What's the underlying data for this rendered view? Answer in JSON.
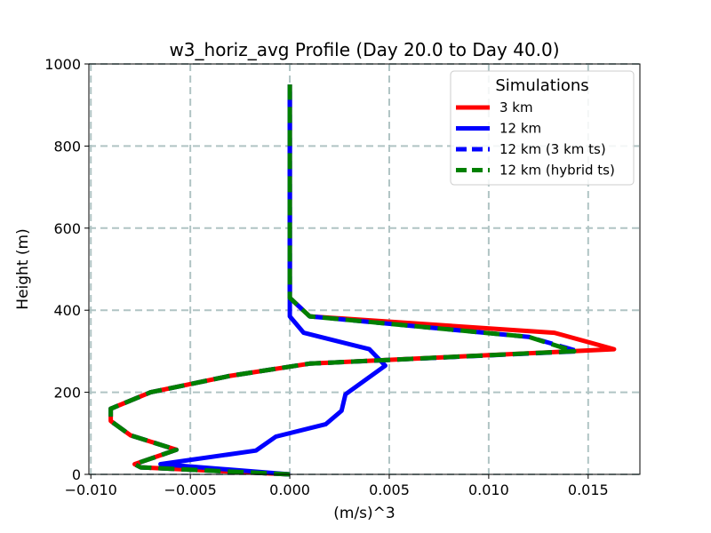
{
  "chart_data": {
    "type": "line",
    "title": "w3_horiz_avg Profile (Day 20.0 to Day 40.0)",
    "xlabel": "(m/s)^3",
    "ylabel": "Height (m)",
    "xlim": [
      -0.0101,
      0.0176
    ],
    "ylim": [
      0,
      1000
    ],
    "xticks": [
      -0.01,
      -0.005,
      0.0,
      0.005,
      0.01,
      0.015
    ],
    "xtick_labels": [
      "−0.010",
      "−0.005",
      "0.000",
      "0.005",
      "0.010",
      "0.015"
    ],
    "yticks": [
      0,
      200,
      400,
      600,
      800,
      1000
    ],
    "ytick_labels": [
      "0",
      "200",
      "400",
      "600",
      "800",
      "1000"
    ],
    "grid": true,
    "legend": {
      "title": "Simulations",
      "position": "top-right"
    },
    "series": [
      {
        "name": "3 km",
        "color": "#ff0000",
        "style": "solid",
        "x": [
          0.0,
          -0.0075,
          -0.0078,
          -0.0057,
          -0.008,
          -0.009,
          -0.009,
          -0.007,
          -0.003,
          0.001,
          0.0163,
          0.0133,
          0.001,
          0.0,
          0.0,
          0.0
        ],
        "y": [
          0,
          17,
          25,
          60,
          95,
          130,
          160,
          200,
          240,
          270,
          305,
          345,
          385,
          430,
          700,
          950
        ]
      },
      {
        "name": "12 km",
        "color": "#0000ff",
        "style": "solid",
        "x": [
          0.0,
          -0.0065,
          -0.0017,
          -0.0007,
          0.0018,
          0.0026,
          0.0028,
          0.0048,
          0.004,
          0.0007,
          0.0,
          0.0,
          0.0
        ],
        "y": [
          0,
          25,
          58,
          92,
          122,
          155,
          195,
          265,
          305,
          345,
          385,
          430,
          950
        ]
      },
      {
        "name": "12 km (3 km ts)",
        "color": "#0000ff",
        "style": "dashed",
        "x": [
          0.0,
          -0.0075,
          -0.0078,
          -0.0057,
          -0.008,
          -0.009,
          -0.009,
          -0.007,
          -0.003,
          0.001,
          0.0145,
          0.012,
          0.001,
          0.0,
          0.0,
          0.0
        ],
        "y": [
          0,
          17,
          25,
          60,
          95,
          130,
          160,
          200,
          240,
          270,
          300,
          335,
          385,
          430,
          700,
          950
        ]
      },
      {
        "name": "12 km (hybrid ts)",
        "color": "#008000",
        "style": "dashed",
        "x": [
          0.0,
          -0.0075,
          -0.0078,
          -0.0057,
          -0.008,
          -0.009,
          -0.009,
          -0.007,
          -0.003,
          0.001,
          0.0143,
          0.012,
          0.001,
          0.0,
          0.0,
          0.0
        ],
        "y": [
          0,
          17,
          25,
          60,
          95,
          130,
          160,
          200,
          240,
          270,
          300,
          335,
          385,
          430,
          700,
          950
        ]
      }
    ]
  }
}
